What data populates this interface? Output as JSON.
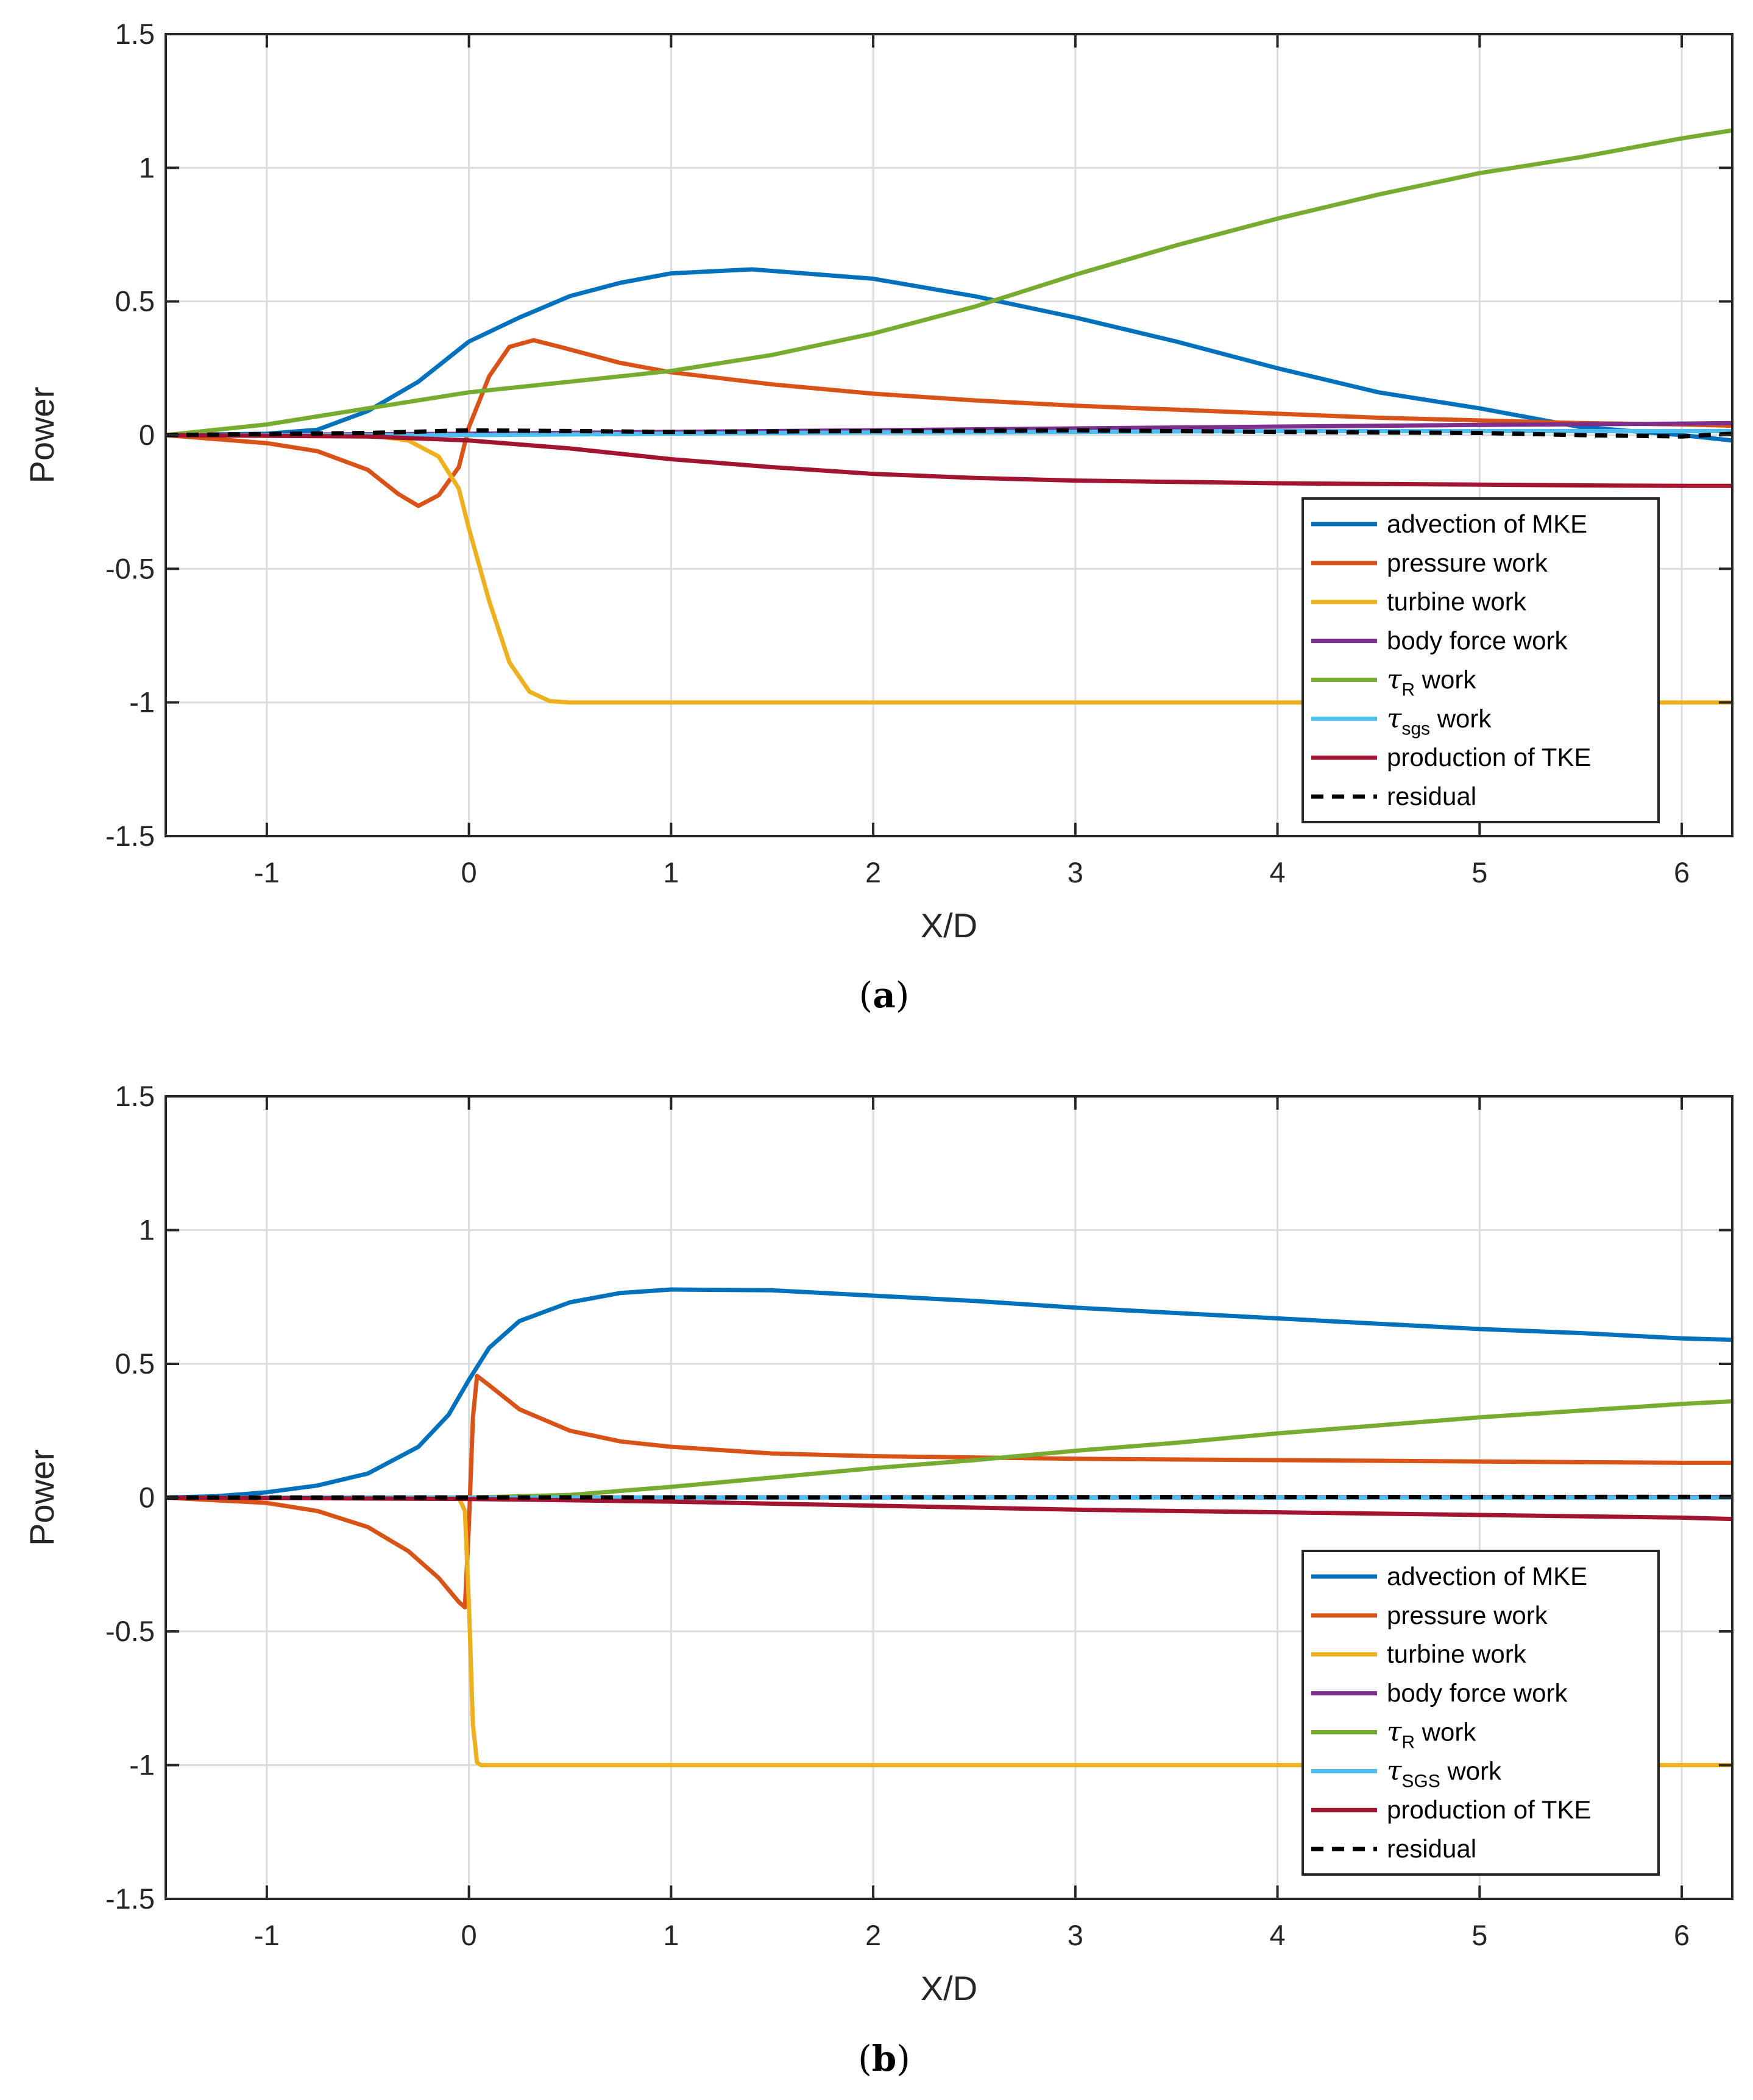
{
  "colors": {
    "advection": "#0072BD",
    "pressure": "#D95319",
    "turbine": "#EDB120",
    "body_force": "#7E2F8E",
    "tau_R": "#77AC30",
    "tau_sgs": "#4DBEEE",
    "production": "#A2142F",
    "residual": "#000000",
    "grid": "#dcdcdc",
    "axis": "#262626"
  },
  "chart_data": [
    {
      "type": "line",
      "panel_label": "a",
      "xlabel": "X/D",
      "ylabel": "Power",
      "xlim": [
        -1.5,
        6.25
      ],
      "ylim": [
        -1.5,
        1.5
      ],
      "xticks": [
        -1,
        0,
        1,
        2,
        3,
        4,
        5,
        6
      ],
      "xtick_labels": [
        "-1",
        "0",
        "1",
        "2",
        "3",
        "4",
        "5",
        "6"
      ],
      "yticks": [
        -1.5,
        -1,
        -0.5,
        0,
        0.5,
        1,
        1.5
      ],
      "ytick_labels": [
        "-1.5",
        "-1",
        "-0.5",
        "0",
        "0.5",
        "1",
        "1.5"
      ],
      "grid": true,
      "legend_position": "bottom-right",
      "series": [
        {
          "key": "advection",
          "name": "advection of MKE",
          "points": [
            [
              -1.5,
              0
            ],
            [
              -1,
              0.005
            ],
            [
              -0.75,
              0.02
            ],
            [
              -0.5,
              0.09
            ],
            [
              -0.25,
              0.2
            ],
            [
              0,
              0.35
            ],
            [
              0.25,
              0.44
            ],
            [
              0.5,
              0.52
            ],
            [
              0.75,
              0.57
            ],
            [
              1,
              0.605
            ],
            [
              1.4,
              0.62
            ],
            [
              2,
              0.585
            ],
            [
              2.5,
              0.52
            ],
            [
              3,
              0.44
            ],
            [
              3.5,
              0.35
            ],
            [
              4,
              0.25
            ],
            [
              4.5,
              0.16
            ],
            [
              5,
              0.1
            ],
            [
              5.5,
              0.03
            ],
            [
              6,
              0.0
            ],
            [
              6.25,
              -0.02
            ]
          ]
        },
        {
          "key": "pressure",
          "name": "pressure work",
          "points": [
            [
              -1.5,
              0
            ],
            [
              -1,
              -0.03
            ],
            [
              -0.75,
              -0.06
            ],
            [
              -0.5,
              -0.13
            ],
            [
              -0.35,
              -0.22
            ],
            [
              -0.25,
              -0.265
            ],
            [
              -0.15,
              -0.225
            ],
            [
              -0.05,
              -0.12
            ],
            [
              0,
              0.03
            ],
            [
              0.1,
              0.22
            ],
            [
              0.2,
              0.33
            ],
            [
              0.32,
              0.355
            ],
            [
              0.45,
              0.33
            ],
            [
              0.75,
              0.27
            ],
            [
              1,
              0.235
            ],
            [
              1.5,
              0.19
            ],
            [
              2,
              0.155
            ],
            [
              2.5,
              0.13
            ],
            [
              3,
              0.11
            ],
            [
              3.5,
              0.095
            ],
            [
              4,
              0.08
            ],
            [
              4.5,
              0.065
            ],
            [
              5,
              0.055
            ],
            [
              5.5,
              0.045
            ],
            [
              6,
              0.04
            ],
            [
              6.25,
              0.035
            ]
          ]
        },
        {
          "key": "turbine",
          "name": "turbine work",
          "points": [
            [
              -1.5,
              0
            ],
            [
              -0.5,
              0
            ],
            [
              -0.3,
              -0.02
            ],
            [
              -0.15,
              -0.08
            ],
            [
              -0.05,
              -0.2
            ],
            [
              0,
              -0.35
            ],
            [
              0.1,
              -0.62
            ],
            [
              0.2,
              -0.85
            ],
            [
              0.3,
              -0.96
            ],
            [
              0.4,
              -0.995
            ],
            [
              0.5,
              -1.0
            ],
            [
              6.25,
              -1.0
            ]
          ]
        },
        {
          "key": "body_force",
          "name": "body force work",
          "points": [
            [
              -1.5,
              0
            ],
            [
              0,
              0.005
            ],
            [
              1,
              0.012
            ],
            [
              2,
              0.018
            ],
            [
              3,
              0.025
            ],
            [
              4,
              0.032
            ],
            [
              5,
              0.038
            ],
            [
              6,
              0.043
            ],
            [
              6.25,
              0.045
            ]
          ]
        },
        {
          "key": "tau_R",
          "name": "τR work",
          "label_symbol": "τ",
          "label_sub": "R",
          "label_rest": " work",
          "points": [
            [
              -1.5,
              0
            ],
            [
              -1,
              0.04
            ],
            [
              -0.5,
              0.1
            ],
            [
              0,
              0.16
            ],
            [
              0.5,
              0.2
            ],
            [
              1,
              0.24
            ],
            [
              1.5,
              0.3
            ],
            [
              2,
              0.38
            ],
            [
              2.5,
              0.48
            ],
            [
              3,
              0.6
            ],
            [
              3.5,
              0.71
            ],
            [
              4,
              0.81
            ],
            [
              4.5,
              0.9
            ],
            [
              5,
              0.98
            ],
            [
              5.5,
              1.04
            ],
            [
              6,
              1.11
            ],
            [
              6.25,
              1.14
            ]
          ]
        },
        {
          "key": "tau_sgs",
          "name": "τsgs work",
          "label_symbol": "τ",
          "label_sub": "sgs",
          "label_rest": " work",
          "points": [
            [
              -1.5,
              0
            ],
            [
              0,
              0
            ],
            [
              1,
              0.005
            ],
            [
              2,
              0.01
            ],
            [
              3,
              0.012
            ],
            [
              4,
              0.015
            ],
            [
              5,
              0.015
            ],
            [
              6,
              0.015
            ],
            [
              6.25,
              0.015
            ]
          ]
        },
        {
          "key": "production",
          "name": "production of TKE",
          "points": [
            [
              -1.5,
              0
            ],
            [
              -0.5,
              -0.005
            ],
            [
              0,
              -0.02
            ],
            [
              0.5,
              -0.05
            ],
            [
              1,
              -0.09
            ],
            [
              1.5,
              -0.12
            ],
            [
              2,
              -0.145
            ],
            [
              2.5,
              -0.16
            ],
            [
              3,
              -0.17
            ],
            [
              3.5,
              -0.175
            ],
            [
              4,
              -0.18
            ],
            [
              4.5,
              -0.183
            ],
            [
              5,
              -0.185
            ],
            [
              5.5,
              -0.188
            ],
            [
              6,
              -0.19
            ],
            [
              6.25,
              -0.19
            ]
          ]
        },
        {
          "key": "residual",
          "name": "residual",
          "dashed": true,
          "points": [
            [
              -1.5,
              0
            ],
            [
              -0.5,
              0.008
            ],
            [
              0,
              0.018
            ],
            [
              0.5,
              0.015
            ],
            [
              1,
              0.012
            ],
            [
              2,
              0.015
            ],
            [
              3,
              0.018
            ],
            [
              4,
              0.012
            ],
            [
              5,
              0.008
            ],
            [
              5.5,
              0.0
            ],
            [
              6,
              -0.005
            ],
            [
              6.25,
              0.005
            ]
          ]
        }
      ]
    },
    {
      "type": "line",
      "panel_label": "b",
      "xlabel": "X/D",
      "ylabel": "Power",
      "xlim": [
        -1.5,
        6.25
      ],
      "ylim": [
        -1.5,
        1.5
      ],
      "xticks": [
        -1,
        0,
        1,
        2,
        3,
        4,
        5,
        6
      ],
      "xtick_labels": [
        "-1",
        "0",
        "1",
        "2",
        "3",
        "4",
        "5",
        "6"
      ],
      "yticks": [
        -1.5,
        -1,
        -0.5,
        0,
        0.5,
        1,
        1.5
      ],
      "ytick_labels": [
        "-1.5",
        "-1",
        "-0.5",
        "0",
        "0.5",
        "1",
        "1.5"
      ],
      "grid": true,
      "legend_position": "bottom-right",
      "series": [
        {
          "key": "advection",
          "name": "advection of MKE",
          "points": [
            [
              -1.5,
              0
            ],
            [
              -1.25,
              0.005
            ],
            [
              -1,
              0.02
            ],
            [
              -0.75,
              0.045
            ],
            [
              -0.5,
              0.09
            ],
            [
              -0.25,
              0.19
            ],
            [
              -0.1,
              0.31
            ],
            [
              0,
              0.44
            ],
            [
              0.1,
              0.56
            ],
            [
              0.25,
              0.66
            ],
            [
              0.5,
              0.73
            ],
            [
              0.75,
              0.765
            ],
            [
              1,
              0.778
            ],
            [
              1.5,
              0.775
            ],
            [
              2,
              0.755
            ],
            [
              2.5,
              0.735
            ],
            [
              3,
              0.71
            ],
            [
              3.5,
              0.69
            ],
            [
              4,
              0.67
            ],
            [
              4.5,
              0.65
            ],
            [
              5,
              0.63
            ],
            [
              5.5,
              0.615
            ],
            [
              6,
              0.595
            ],
            [
              6.25,
              0.59
            ]
          ]
        },
        {
          "key": "pressure",
          "name": "pressure work",
          "points": [
            [
              -1.5,
              0
            ],
            [
              -1,
              -0.02
            ],
            [
              -0.75,
              -0.05
            ],
            [
              -0.5,
              -0.11
            ],
            [
              -0.3,
              -0.2
            ],
            [
              -0.15,
              -0.3
            ],
            [
              -0.05,
              -0.39
            ],
            [
              -0.02,
              -0.41
            ],
            [
              0.0,
              -0.1
            ],
            [
              0.02,
              0.3
            ],
            [
              0.04,
              0.455
            ],
            [
              0.1,
              0.42
            ],
            [
              0.25,
              0.33
            ],
            [
              0.5,
              0.25
            ],
            [
              0.75,
              0.21
            ],
            [
              1,
              0.19
            ],
            [
              1.5,
              0.165
            ],
            [
              2,
              0.155
            ],
            [
              3,
              0.145
            ],
            [
              4,
              0.14
            ],
            [
              5,
              0.135
            ],
            [
              6,
              0.13
            ],
            [
              6.25,
              0.13
            ]
          ]
        },
        {
          "key": "turbine",
          "name": "turbine work",
          "points": [
            [
              -1.5,
              0
            ],
            [
              -0.05,
              0
            ],
            [
              -0.02,
              -0.05
            ],
            [
              0.0,
              -0.4
            ],
            [
              0.02,
              -0.85
            ],
            [
              0.04,
              -0.99
            ],
            [
              0.06,
              -1.0
            ],
            [
              6.25,
              -1.0
            ]
          ]
        },
        {
          "key": "body_force",
          "name": "body force work",
          "points": [
            [
              -1.5,
              0
            ],
            [
              6.25,
              0.002
            ]
          ]
        },
        {
          "key": "tau_R",
          "name": "τR work",
          "label_symbol": "τ",
          "label_sub": "R",
          "label_rest": " work",
          "points": [
            [
              -1.5,
              0
            ],
            [
              0,
              0
            ],
            [
              0.5,
              0.01
            ],
            [
              1,
              0.04
            ],
            [
              1.5,
              0.075
            ],
            [
              2,
              0.11
            ],
            [
              2.5,
              0.14
            ],
            [
              3,
              0.175
            ],
            [
              3.5,
              0.205
            ],
            [
              4,
              0.24
            ],
            [
              4.5,
              0.27
            ],
            [
              5,
              0.3
            ],
            [
              5.5,
              0.325
            ],
            [
              6,
              0.35
            ],
            [
              6.25,
              0.36
            ]
          ]
        },
        {
          "key": "tau_sgs",
          "name": "τSGS work",
          "label_symbol": "τ",
          "label_sub": "SGS",
          "label_rest": " work",
          "points": [
            [
              -1.5,
              0
            ],
            [
              6.25,
              0
            ]
          ]
        },
        {
          "key": "production",
          "name": "production of TKE",
          "points": [
            [
              -1.5,
              0
            ],
            [
              0,
              -0.005
            ],
            [
              0.5,
              -0.01
            ],
            [
              1,
              -0.015
            ],
            [
              2,
              -0.03
            ],
            [
              3,
              -0.045
            ],
            [
              4,
              -0.055
            ],
            [
              5,
              -0.065
            ],
            [
              6,
              -0.075
            ],
            [
              6.25,
              -0.08
            ]
          ]
        },
        {
          "key": "residual",
          "name": "residual",
          "dashed": true,
          "points": [
            [
              -1.5,
              0
            ],
            [
              6.25,
              0.003
            ]
          ]
        }
      ]
    }
  ]
}
